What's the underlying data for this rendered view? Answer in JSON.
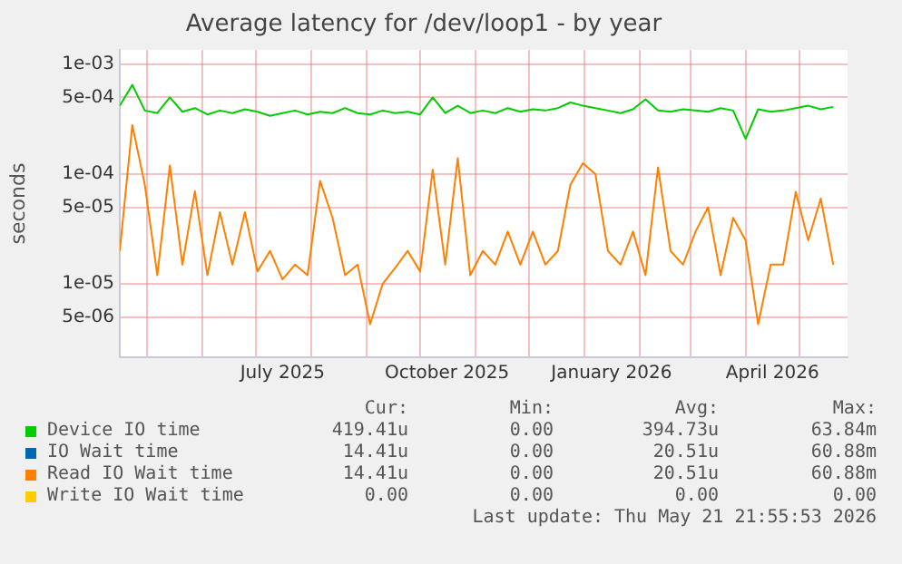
{
  "chart_data": {
    "type": "line",
    "title": "Average latency for /dev/loop1 - by year",
    "ylabel": "seconds",
    "x": [
      "2025-04-16",
      "2025-04-23",
      "2025-04-30",
      "2025-05-07",
      "2025-05-14",
      "2025-05-21",
      "2025-05-28",
      "2025-06-04",
      "2025-06-11",
      "2025-06-18",
      "2025-06-25",
      "2025-07-02",
      "2025-07-09",
      "2025-07-16",
      "2025-07-23",
      "2025-07-30",
      "2025-08-06",
      "2025-08-13",
      "2025-08-20",
      "2025-08-27",
      "2025-09-03",
      "2025-09-10",
      "2025-09-17",
      "2025-09-24",
      "2025-10-01",
      "2025-10-08",
      "2025-10-15",
      "2025-10-22",
      "2025-10-29",
      "2025-11-05",
      "2025-11-12",
      "2025-11-19",
      "2025-11-26",
      "2025-12-03",
      "2025-12-10",
      "2025-12-17",
      "2025-12-24",
      "2025-12-31",
      "2026-01-07",
      "2026-01-14",
      "2026-01-21",
      "2026-01-28",
      "2026-02-04",
      "2026-02-11",
      "2026-02-18",
      "2026-02-25",
      "2026-03-04",
      "2026-03-11",
      "2026-03-18",
      "2026-03-25",
      "2026-04-01",
      "2026-04-08",
      "2026-04-15",
      "2026-04-22",
      "2026-04-29",
      "2026-05-06",
      "2026-05-13",
      "2026-05-20"
    ],
    "series": [
      {
        "name": "Device IO time",
        "color": "#00cc00",
        "values": [
          0.00042,
          0.00065,
          0.00038,
          0.00036,
          0.0005,
          0.00037,
          0.0004,
          0.00035,
          0.00038,
          0.00036,
          0.00039,
          0.00037,
          0.00034,
          0.00036,
          0.00038,
          0.00035,
          0.00037,
          0.00036,
          0.0004,
          0.00036,
          0.00035,
          0.00038,
          0.00036,
          0.00037,
          0.00035,
          0.0005,
          0.00036,
          0.00042,
          0.00036,
          0.00038,
          0.00036,
          0.0004,
          0.00037,
          0.00039,
          0.00038,
          0.0004,
          0.00045,
          0.00042,
          0.0004,
          0.00038,
          0.00036,
          0.00039,
          0.00048,
          0.00038,
          0.00037,
          0.00039,
          0.00038,
          0.00037,
          0.0004,
          0.00038,
          0.00021,
          0.00039,
          0.00037,
          0.00038,
          0.0004,
          0.00042,
          0.00039,
          0.00041
        ]
      },
      {
        "name": "IO Wait time",
        "color": "#0066b3",
        "values": [
          null,
          null,
          null,
          null,
          null,
          null,
          null,
          null,
          null,
          null,
          null,
          null,
          null,
          null,
          null,
          null,
          null,
          null,
          null,
          null,
          null,
          null,
          null,
          null,
          null,
          null,
          null,
          null,
          null,
          null,
          null,
          null,
          null,
          null,
          null,
          null,
          null,
          null,
          null,
          null,
          null,
          null,
          null,
          null,
          null,
          null,
          null,
          null,
          null,
          null,
          null,
          null,
          null,
          null,
          null,
          null,
          null,
          null
        ]
      },
      {
        "name": "Read IO Wait time",
        "color": "#ff8000",
        "values": [
          2e-05,
          0.00028,
          8e-05,
          1.2e-05,
          0.00012,
          1.5e-05,
          7e-05,
          1.2e-05,
          4.5e-05,
          1.5e-05,
          4.5e-05,
          1.3e-05,
          2e-05,
          1.1e-05,
          1.5e-05,
          1.2e-05,
          8.7e-05,
          4e-05,
          1.2e-05,
          1.5e-05,
          4.3e-06,
          1e-05,
          1.4e-05,
          2e-05,
          1.3e-05,
          0.00011,
          1.5e-05,
          0.00014,
          1.2e-05,
          2e-05,
          1.5e-05,
          3e-05,
          1.5e-05,
          3e-05,
          1.5e-05,
          2e-05,
          8e-05,
          0.000126,
          0.0001,
          2e-05,
          1.5e-05,
          3e-05,
          1.2e-05,
          0.000115,
          2e-05,
          1.5e-05,
          3e-05,
          5e-05,
          1.2e-05,
          4e-05,
          2.5e-05,
          4.3e-06,
          1.5e-05,
          1.5e-05,
          6.9e-05,
          2.5e-05,
          6e-05,
          1.5e-05
        ]
      },
      {
        "name": "Write IO Wait time",
        "color": "#ffcc00",
        "values": [
          null,
          null,
          null,
          null,
          null,
          null,
          null,
          null,
          null,
          null,
          null,
          null,
          null,
          null,
          null,
          null,
          null,
          null,
          null,
          null,
          null,
          null,
          null,
          null,
          null,
          null,
          null,
          null,
          null,
          null,
          null,
          null,
          null,
          null,
          null,
          null,
          null,
          null,
          null,
          null,
          null,
          null,
          null,
          null,
          null,
          null,
          null,
          null,
          null,
          null,
          null,
          null,
          null,
          null,
          null,
          null,
          null,
          null
        ]
      }
    ],
    "xlim": [
      "2025-04-16",
      "2026-05-28"
    ],
    "xticks": [
      {
        "value": "2025-05-01",
        "label": null
      },
      {
        "value": "2025-06-01",
        "label": null
      },
      {
        "value": "2025-07-01",
        "label": null
      },
      {
        "value": "2025-07-16",
        "label": "July 2025"
      },
      {
        "value": "2025-08-01",
        "label": null
      },
      {
        "value": "2025-09-01",
        "label": null
      },
      {
        "value": "2025-10-01",
        "label": null
      },
      {
        "value": "2025-10-16",
        "label": "October 2025"
      },
      {
        "value": "2025-11-01",
        "label": null
      },
      {
        "value": "2025-12-01",
        "label": null
      },
      {
        "value": "2026-01-01",
        "label": null
      },
      {
        "value": "2026-01-16",
        "label": "January 2026"
      },
      {
        "value": "2026-02-01",
        "label": null
      },
      {
        "value": "2026-03-01",
        "label": null
      },
      {
        "value": "2026-04-01",
        "label": null
      },
      {
        "value": "2026-04-16",
        "label": "April 2026"
      },
      {
        "value": "2026-05-01",
        "label": null
      }
    ],
    "ylim": [
      2.15e-06,
      0.00135
    ],
    "yticks": [
      {
        "value": 5e-06,
        "label": "5e-06"
      },
      {
        "value": 1e-05,
        "label": "1e-05"
      },
      {
        "value": 5e-05,
        "label": "5e-05"
      },
      {
        "value": 0.0001,
        "label": "1e-04"
      },
      {
        "value": 0.0005,
        "label": "5e-04"
      },
      {
        "value": 0.001,
        "label": "1e-03"
      }
    ],
    "log": "y",
    "grid": true,
    "legend": "bottom",
    "marker": "none",
    "line_style": "solid",
    "annotations": [
      "Cur:",
      "Min:",
      "Avg:",
      "Max:",
      "419.41u",
      "0.00",
      "394.73u",
      "63.84m",
      "14.41u",
      "0.00",
      "20.51u",
      "60.88m",
      "14.41u",
      "0.00",
      "20.51u",
      "60.88m",
      "0.00",
      "0.00",
      "0.00",
      "0.00",
      "Last update: Thu May 21 21:55:53 2026"
    ]
  }
}
